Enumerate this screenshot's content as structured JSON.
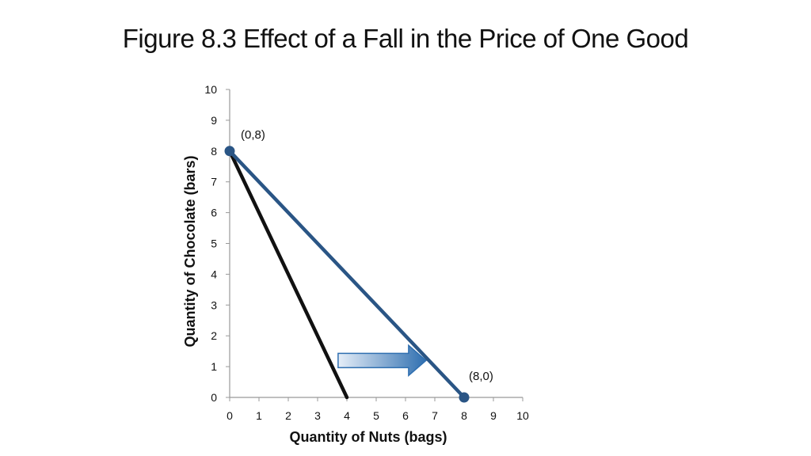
{
  "slide": {
    "title": "Figure 8.3 Effect of a Fall in the Price of One Good"
  },
  "chart_data": {
    "type": "line",
    "xlabel": "Quantity of Nuts (bags)",
    "ylabel": "Quantity of Chocolate (bars)",
    "xlim": [
      0,
      10
    ],
    "ylim": [
      0,
      10
    ],
    "xticks": [
      "0",
      "1",
      "2",
      "3",
      "4",
      "5",
      "6",
      "7",
      "8",
      "9",
      "10"
    ],
    "yticks": [
      "0",
      "1",
      "2",
      "3",
      "4",
      "5",
      "6",
      "7",
      "8",
      "9",
      "10"
    ],
    "grid": false,
    "series": [
      {
        "color": "#111111",
        "points": [
          [
            0,
            8
          ],
          [
            4,
            0
          ]
        ]
      },
      {
        "color": "#2a5585",
        "points": [
          [
            0,
            8
          ],
          [
            8,
            0
          ]
        ]
      }
    ],
    "markers": [
      {
        "x": 0,
        "y": 8,
        "label": "(0,8)",
        "color": "#2a5585"
      },
      {
        "x": 8,
        "y": 0,
        "label": "(8,0)",
        "color": "#2a5585"
      }
    ],
    "annotation": {
      "type": "arrow",
      "from": [
        3.7,
        1.2
      ],
      "to": [
        6.7,
        1.2
      ],
      "direction": "right",
      "color": "#2f6fb0"
    }
  }
}
